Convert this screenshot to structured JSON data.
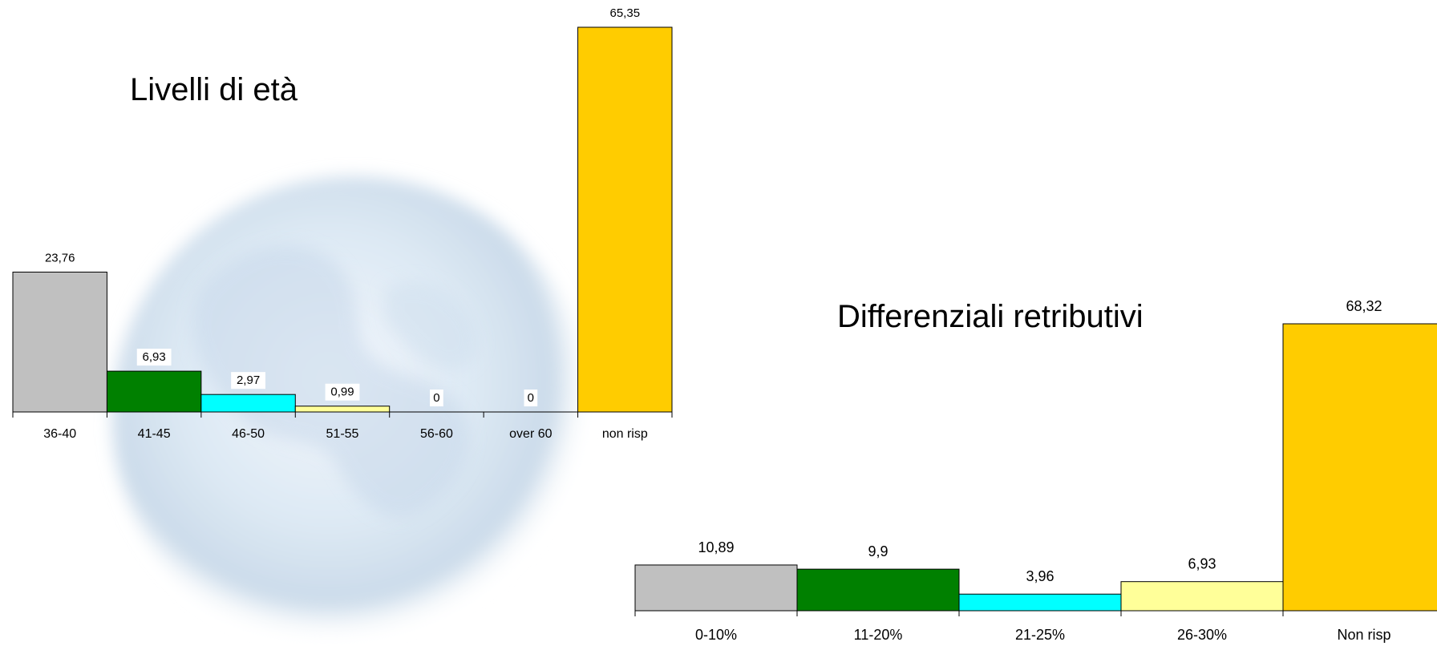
{
  "chart_data": [
    {
      "type": "bar",
      "title": "Livelli di età",
      "categories": [
        "36-40",
        "41-45",
        "46-50",
        "51-55",
        "56-60",
        "over 60",
        "non risp"
      ],
      "values": [
        23.76,
        6.93,
        2.97,
        0.99,
        0,
        0,
        65.35
      ],
      "value_labels": [
        "23,76",
        "6,93",
        "2,97",
        "0,99",
        "0",
        "0",
        "65,35"
      ],
      "colors": [
        "#c0c0c0",
        "#008000",
        "#00ffff",
        "#ffff99",
        "#c0c0c0",
        "#c0c0c0",
        "#ffcc00"
      ],
      "xlabel": "",
      "ylabel": "",
      "ylim": [
        0,
        65.35
      ],
      "grid": false,
      "legend": "none"
    },
    {
      "type": "bar",
      "title": "Differenziali retributivi",
      "categories": [
        "0-10%",
        "11-20%",
        "21-25%",
        "26-30%",
        "Non risp"
      ],
      "values": [
        10.89,
        9.9,
        3.96,
        6.93,
        68.32
      ],
      "value_labels": [
        "10,89",
        "9,9",
        "3,96",
        "6,93",
        "68,32"
      ],
      "colors": [
        "#c0c0c0",
        "#008000",
        "#00ffff",
        "#ffff99",
        "#ffcc00"
      ],
      "xlabel": "",
      "ylabel": "",
      "ylim": [
        0,
        68.32
      ],
      "grid": false,
      "legend": "none"
    }
  ]
}
